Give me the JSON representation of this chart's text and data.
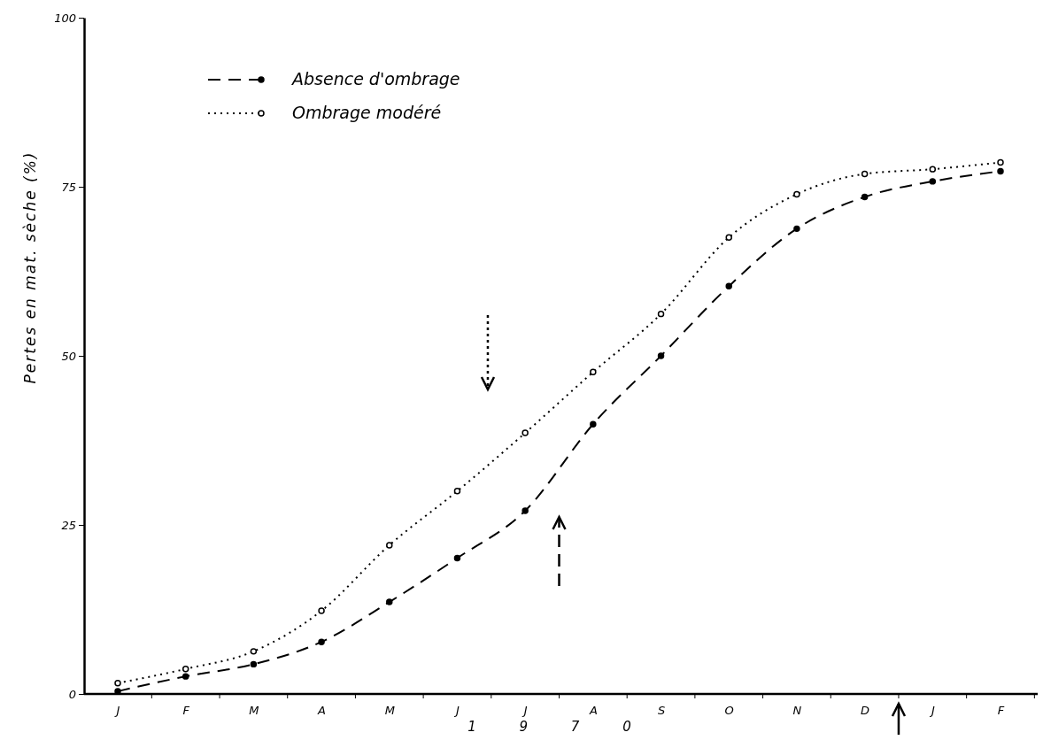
{
  "chart_data": {
    "type": "line",
    "xlabel": "1 9 7 0",
    "ylabel": "Pertes en mat. sèche (%)",
    "categories": [
      "J",
      "F",
      "M",
      "A",
      "M",
      "J",
      "J",
      "A",
      "S",
      "O",
      "N",
      "D",
      "J",
      "F"
    ],
    "series": [
      {
        "name": "Absence d'ombrage",
        "color": "#000000",
        "line_style": "dashed",
        "values": [
          0.4,
          2.6,
          4.4,
          7.7,
          13.6,
          20.1,
          27.1,
          39.9,
          50,
          60.3,
          68.8,
          73.5,
          75.8,
          77.3
        ]
      },
      {
        "name": "Ombrage modéré",
        "color": "#000000",
        "line_style": "dotted",
        "values": [
          1.6,
          3.7,
          6.3,
          12.3,
          22,
          30,
          38.6,
          47.6,
          56.2,
          67.5,
          73.9,
          76.9,
          77.6,
          78.6
        ]
      }
    ],
    "ylim": [
      0,
      100
    ],
    "yticks": [
      0,
      25,
      50,
      75,
      100
    ],
    "grid": false,
    "legend": "top left",
    "marker": "circle"
  }
}
